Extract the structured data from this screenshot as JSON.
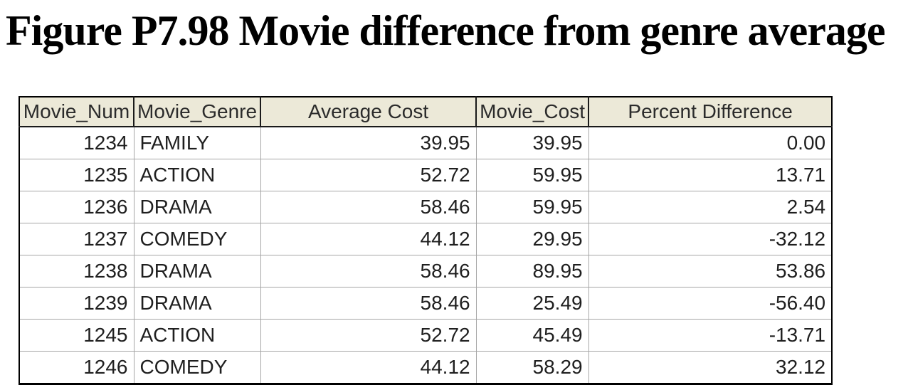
{
  "figure": {
    "title": "Figure P7.98 Movie difference from genre average"
  },
  "table": {
    "columns": [
      {
        "id": "movie-num",
        "label": "Movie_Num"
      },
      {
        "id": "movie-genre",
        "label": "Movie_Genre"
      },
      {
        "id": "average-cost",
        "label": "Average Cost"
      },
      {
        "id": "movie-cost",
        "label": "Movie_Cost"
      },
      {
        "id": "percent-difference",
        "label": "Percent Difference"
      }
    ],
    "rows": [
      [
        "1234",
        "FAMILY",
        "39.95",
        "39.95",
        "0.00"
      ],
      [
        "1235",
        "ACTION",
        "52.72",
        "59.95",
        "13.71"
      ],
      [
        "1236",
        "DRAMA",
        "58.46",
        "59.95",
        "2.54"
      ],
      [
        "1237",
        "COMEDY",
        "44.12",
        "29.95",
        "-32.12"
      ],
      [
        "1238",
        "DRAMA",
        "58.46",
        "89.95",
        "53.86"
      ],
      [
        "1239",
        "DRAMA",
        "58.46",
        "25.49",
        "-56.40"
      ],
      [
        "1245",
        "ACTION",
        "52.72",
        "45.49",
        "-13.71"
      ],
      [
        "1246",
        "COMEDY",
        "44.12",
        "58.29",
        "32.12"
      ]
    ]
  },
  "colors": {
    "header_bg": "#ece9d8",
    "outer_border": "#000000",
    "grid_line": "#a6a6a6",
    "text": "#1a1a1a"
  }
}
